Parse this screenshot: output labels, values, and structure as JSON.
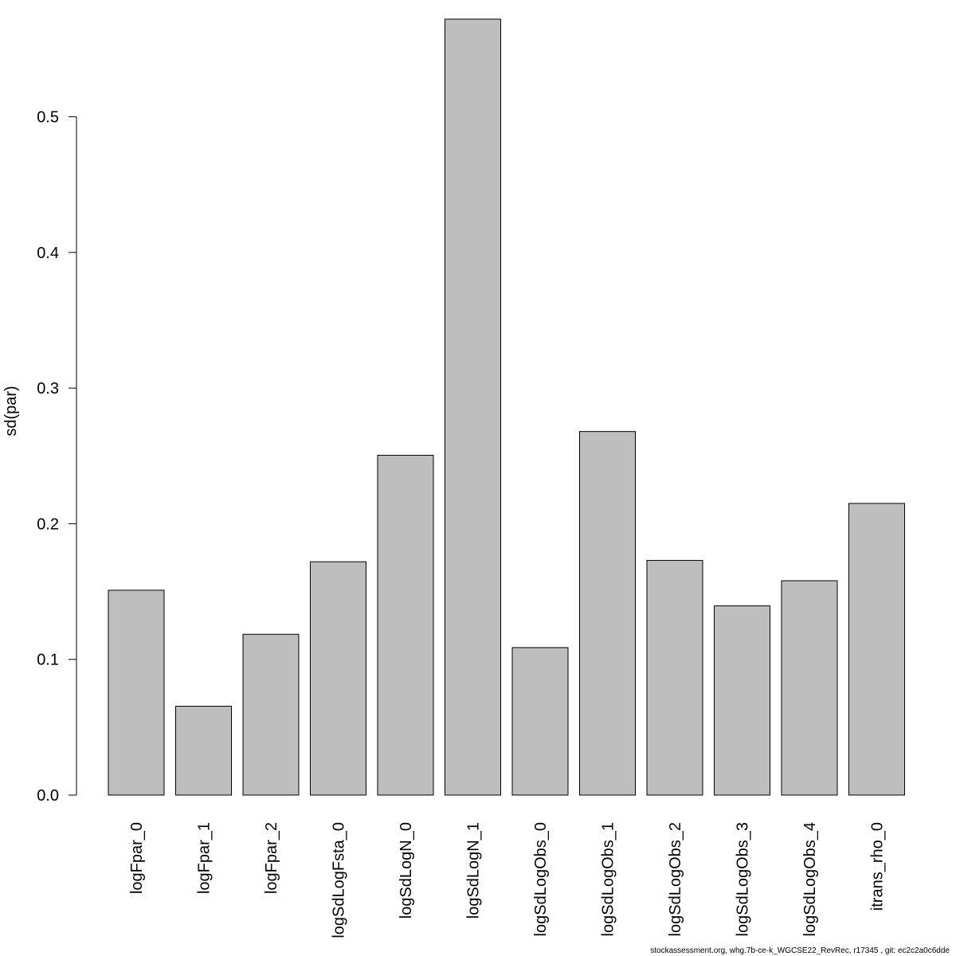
{
  "chart_data": {
    "type": "bar",
    "categories": [
      "logFpar_0",
      "logFpar_1",
      "logFpar_2",
      "logSdLogFsta_0",
      "logSdLogN_0",
      "logSdLogN_1",
      "logSdLogObs_0",
      "logSdLogObs_1",
      "logSdLogObs_2",
      "logSdLogObs_3",
      "logSdLogObs_4",
      "itrans_rho_0"
    ],
    "values": [
      0.151,
      0.0655,
      0.1185,
      0.172,
      0.2505,
      0.572,
      0.1087,
      0.268,
      0.173,
      0.1395,
      0.158,
      0.215
    ],
    "ylabel": "sd(par)",
    "xlabel": "",
    "ylim": [
      0,
      0.572
    ],
    "yticks": [
      0.0,
      0.1,
      0.2,
      0.3,
      0.4,
      0.5
    ],
    "ytick_labels": [
      "0.0",
      "0.1",
      "0.2",
      "0.3",
      "0.4",
      "0.5"
    ],
    "grid": false,
    "bar_color": "#bebebe",
    "bar_edge_color": "#000000"
  },
  "footer": "stockassessment.org, whg.7b-ce-k_WGCSE22_RevRec, r17345 , git: ec2c2a0c6dde"
}
